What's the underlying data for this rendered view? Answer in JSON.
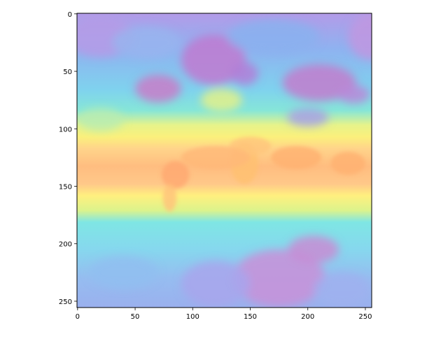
{
  "chart_data": {
    "type": "heatmap",
    "title": "",
    "xlabel": "",
    "ylabel": "",
    "xlim": [
      0,
      255
    ],
    "ylim": [
      255,
      0
    ],
    "x_ticks": [
      0,
      50,
      100,
      150,
      200,
      250
    ],
    "y_ticks": [
      0,
      50,
      100,
      150,
      200,
      250
    ],
    "x_tick_labels": [
      "0",
      "50",
      "100",
      "150",
      "200",
      "250"
    ],
    "y_tick_labels": [
      "0",
      "50",
      "100",
      "150",
      "200",
      "250"
    ],
    "colormap": "rainbow",
    "alpha": 0.6,
    "grid": false,
    "colorbar": false,
    "content": "global temperature-like field over a world map: warm (orange/red) band along rows ~105-155, yellow bands around rows ~90-105 and ~155-180, cyan/blue mid latitudes, purple/magenta over northern continents (rows ~10-80) and southern polar region (rows ~190-255)",
    "colors": {
      "cold": "#8000ff",
      "cool": "#00b4ec",
      "mild": "#2adddd",
      "warm_mild": "#d4dd80",
      "warm": "#ffb360",
      "hot": "#ff8040"
    }
  }
}
